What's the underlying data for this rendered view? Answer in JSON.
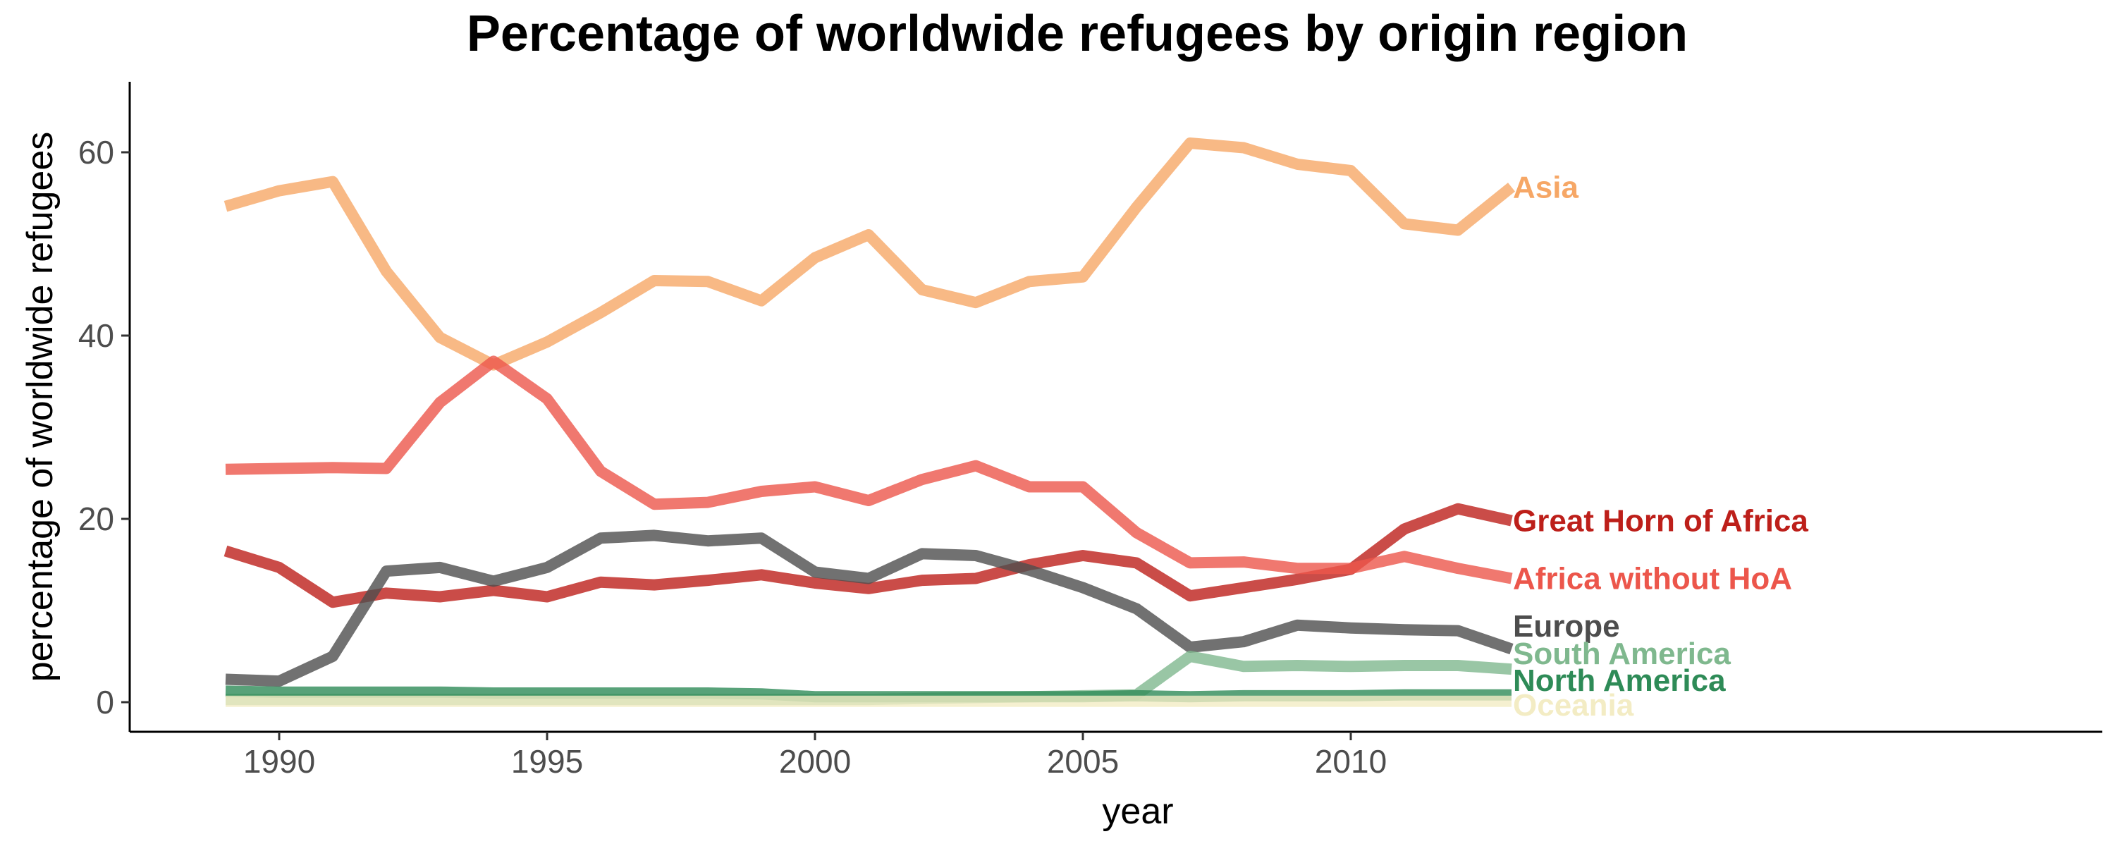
{
  "chart_data": {
    "type": "line",
    "title": "Percentage of worldwide refugees by origin region",
    "xlabel": "year",
    "ylabel": "percentage of worldwide refugees",
    "xlim": [
      1988,
      2019
    ],
    "ylim": [
      -3,
      68
    ],
    "x_ticks": [
      1990,
      1995,
      2000,
      2005,
      2010
    ],
    "y_ticks": [
      0,
      20,
      40,
      60
    ],
    "grid": false,
    "legend": "direct labels at line ends",
    "x": [
      1989,
      1990,
      1991,
      1992,
      1993,
      1994,
      1995,
      1996,
      1997,
      1998,
      1999,
      2000,
      2001,
      2002,
      2003,
      2004,
      2005,
      2006,
      2007,
      2008,
      2009,
      2010,
      2011,
      2012,
      2013
    ],
    "series": [
      {
        "name": "Asia",
        "color": "#f6a766",
        "values": [
          54.1,
          55.8,
          56.8,
          47.0,
          39.8,
          36.8,
          39.3,
          42.5,
          46.0,
          45.9,
          43.8,
          48.5,
          51.0,
          45.0,
          43.6,
          45.9,
          46.4,
          54.0,
          61.0,
          60.5,
          58.7,
          58.0,
          52.2,
          51.5,
          56.2
        ]
      },
      {
        "name": "Great Horn of Africa",
        "color": "#bd1f1a",
        "values": [
          16.5,
          14.7,
          10.9,
          11.9,
          11.5,
          12.2,
          11.5,
          13.1,
          12.8,
          13.3,
          13.9,
          13.0,
          12.4,
          13.3,
          13.5,
          15.0,
          16.0,
          15.2,
          11.6,
          12.5,
          13.4,
          14.5,
          18.9,
          21.1,
          19.8
        ]
      },
      {
        "name": "Africa without HoA",
        "color": "#ec564b",
        "values": [
          25.4,
          25.5,
          25.6,
          25.5,
          32.7,
          37.2,
          33.1,
          25.2,
          21.6,
          21.8,
          23.0,
          23.5,
          22.0,
          24.3,
          25.8,
          23.5,
          23.5,
          18.5,
          15.2,
          15.3,
          14.6,
          14.6,
          15.9,
          14.6,
          13.5
        ]
      },
      {
        "name": "Europe",
        "color": "#4d4d4d",
        "values": [
          2.5,
          2.3,
          5.0,
          14.3,
          14.7,
          13.2,
          14.7,
          17.9,
          18.2,
          17.6,
          17.9,
          14.2,
          13.5,
          16.2,
          16.0,
          14.4,
          12.5,
          10.2,
          6.0,
          6.6,
          8.4,
          8.1,
          7.9,
          7.8,
          5.8
        ]
      },
      {
        "name": "South America",
        "color": "#7fb88e",
        "values": [
          0.3,
          0.3,
          0.3,
          0.3,
          0.3,
          0.3,
          0.3,
          0.3,
          0.3,
          0.3,
          0.3,
          0.3,
          0.3,
          0.4,
          0.5,
          0.6,
          0.7,
          0.8,
          5.0,
          3.9,
          4.0,
          3.9,
          4.0,
          4.0,
          3.6
        ]
      },
      {
        "name": "North America",
        "color": "#2e8b57",
        "values": [
          1.2,
          1.1,
          1.1,
          1.1,
          1.1,
          1.0,
          1.0,
          1.0,
          1.0,
          1.0,
          0.9,
          0.6,
          0.6,
          0.6,
          0.6,
          0.6,
          0.6,
          0.7,
          0.6,
          0.7,
          0.7,
          0.7,
          0.8,
          0.8,
          0.8
        ]
      },
      {
        "name": "Oceania",
        "color": "#f3ecc4",
        "values": [
          0.1,
          0.1,
          0.1,
          0.1,
          0.1,
          0.1,
          0.1,
          0.1,
          0.1,
          0.1,
          0.1,
          0.1,
          0.1,
          0.1,
          0.1,
          0.1,
          0.1,
          0.1,
          0.1,
          0.1,
          0.1,
          0.1,
          0.1,
          0.1,
          0.1
        ]
      }
    ],
    "end_labels": [
      {
        "text": "Asia",
        "color": "#f6a766",
        "y": 56.2
      },
      {
        "text": "Great Horn of Africa",
        "color": "#bd1f1a",
        "y": 19.8
      },
      {
        "text": "Africa without HoA",
        "color": "#ec564b",
        "y": 13.5
      },
      {
        "text": "Europe",
        "color": "#4d4d4d",
        "y": 8.3
      },
      {
        "text": "South America",
        "color": "#7fb88e",
        "y": 5.3
      },
      {
        "text": "North America",
        "color": "#2e8b57",
        "y": 2.4
      },
      {
        "text": "Oceania",
        "color": "#f3ecc4",
        "y": -0.3
      }
    ]
  }
}
